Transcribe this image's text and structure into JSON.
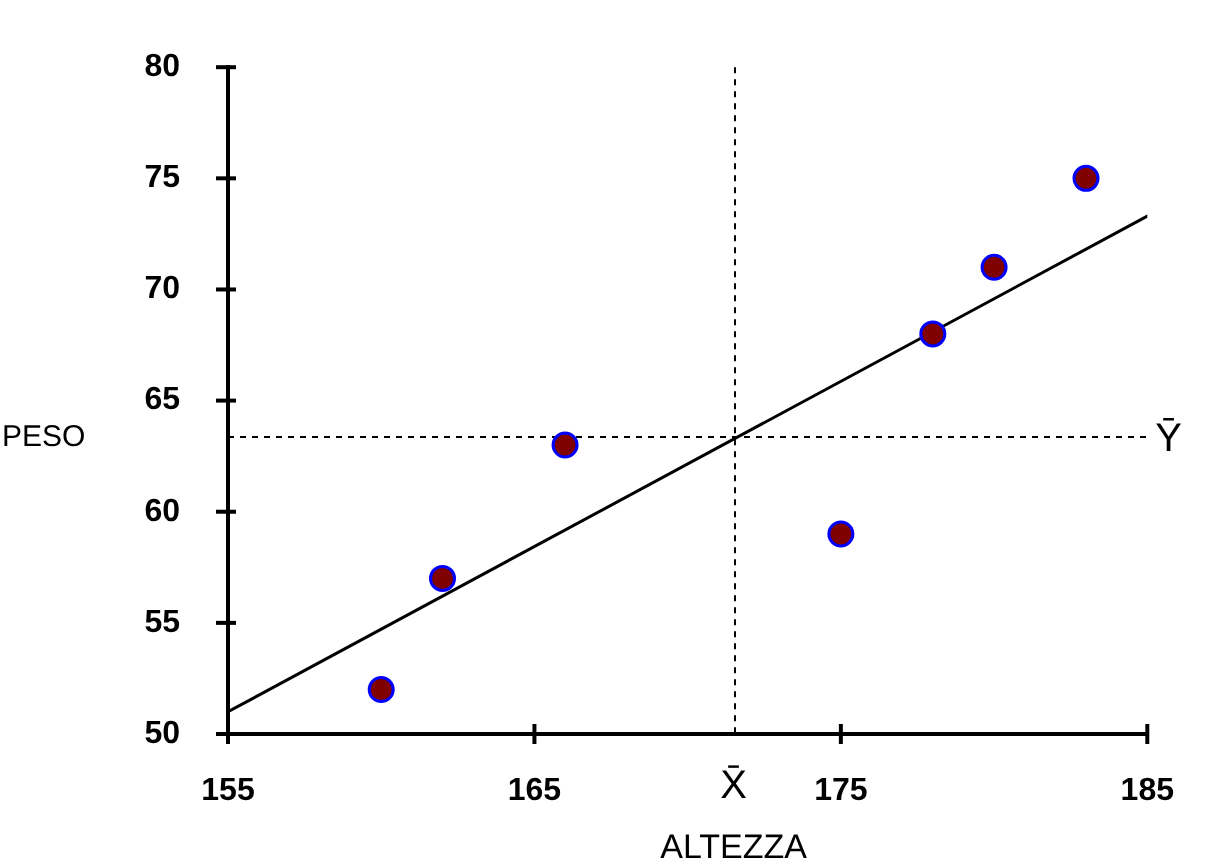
{
  "chart_data": {
    "type": "scatter",
    "xlabel": "ALTEZZA",
    "ylabel": "PESO",
    "xlim": [
      155,
      185
    ],
    "xticks": [
      155,
      165,
      175,
      185
    ],
    "ylim": [
      50,
      80
    ],
    "yticks": [
      50,
      55,
      60,
      65,
      70,
      75,
      80
    ],
    "series": [
      {
        "type": "scatter",
        "color": "#800000",
        "marker": "circle",
        "x": [
          160,
          162,
          166,
          175,
          178,
          180,
          183
        ],
        "values": [
          52,
          57,
          63,
          59,
          68,
          71,
          75
        ]
      },
      {
        "type": "line",
        "color": "#000000",
        "marker": "none",
        "line_style": "solid",
        "x": [
          155,
          185
        ],
        "values": [
          51,
          73.3
        ]
      }
    ],
    "ref_lines": [
      {
        "axis": "x",
        "value": 171.5,
        "label": "X̄",
        "color": "#000000",
        "line_style": "dashed"
      },
      {
        "axis": "y",
        "value": 63.4,
        "label": "Ȳ",
        "color": "#000000",
        "line_style": "dashed"
      }
    ]
  }
}
